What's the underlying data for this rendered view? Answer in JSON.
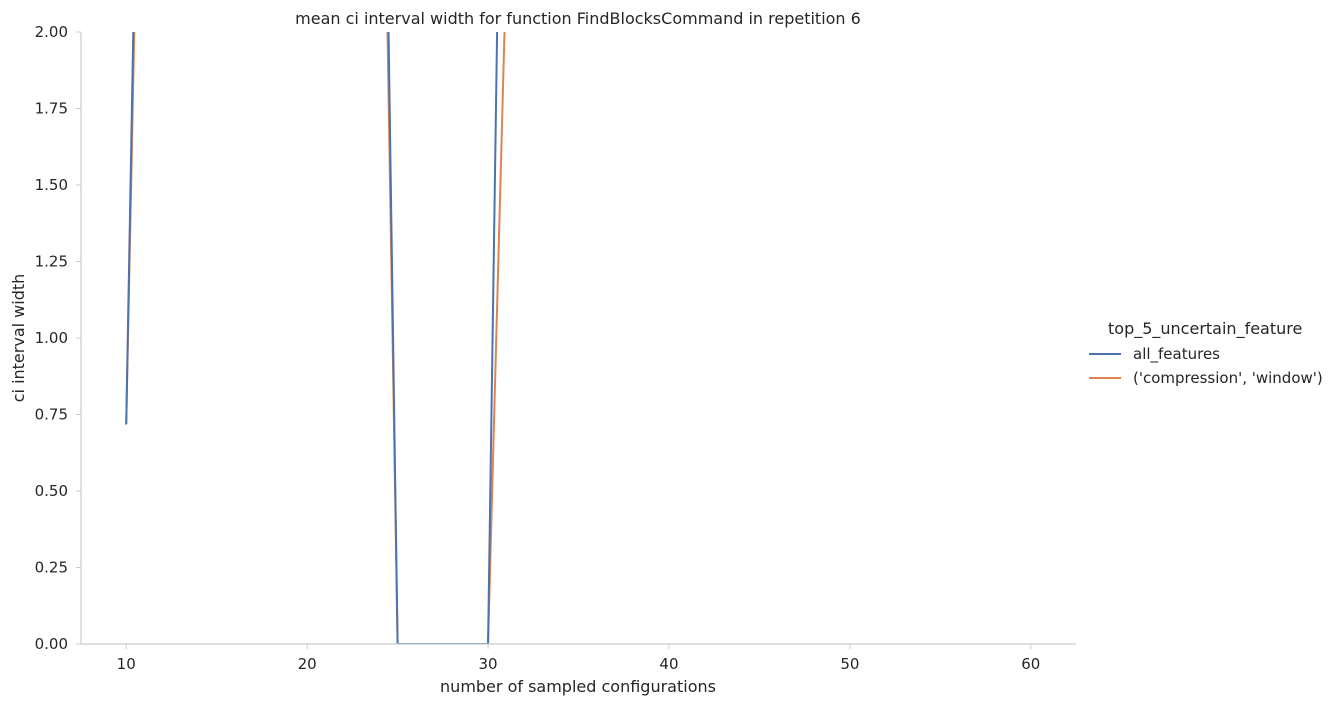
{
  "chart_data": {
    "type": "line",
    "title": "mean ci interval width for function FindBlocksCommand in repetition 6",
    "xlabel": "number of sampled configurations",
    "ylabel": "ci interval width",
    "xlim": [
      7.5,
      62.5
    ],
    "ylim": [
      0,
      2.0
    ],
    "xticks": [
      10,
      20,
      30,
      40,
      50,
      60
    ],
    "xtick_labels": [
      "10",
      "20",
      "30",
      "40",
      "50",
      "60"
    ],
    "yticks": [
      0,
      0.25,
      0.5,
      0.75,
      1.0,
      1.25,
      1.5,
      1.75,
      2.0
    ],
    "ytick_labels": [
      "0.00",
      "0.25",
      "0.50",
      "0.75",
      "1.00",
      "1.25",
      "1.50",
      "1.75",
      "2.00"
    ],
    "grid": false,
    "legend": {
      "title": "top_5_uncertain_feature",
      "placement": "right"
    },
    "series": [
      {
        "name": "all_features",
        "color": "#4c72b0",
        "x": [
          10,
          11,
          24,
          25,
          26,
          29,
          30,
          31
        ],
        "y": [
          0.72,
          4.0,
          4.0,
          0.0,
          0.0,
          0.0,
          0.0,
          4.0
        ]
      },
      {
        "name": "('compression', 'window')",
        "color": "#dd8452",
        "x": [
          10,
          11,
          24,
          25,
          26,
          29,
          30,
          31
        ],
        "y": [
          0.72,
          3.6,
          3.6,
          0.0,
          0.0,
          0.0,
          0.0,
          2.2
        ]
      }
    ]
  }
}
